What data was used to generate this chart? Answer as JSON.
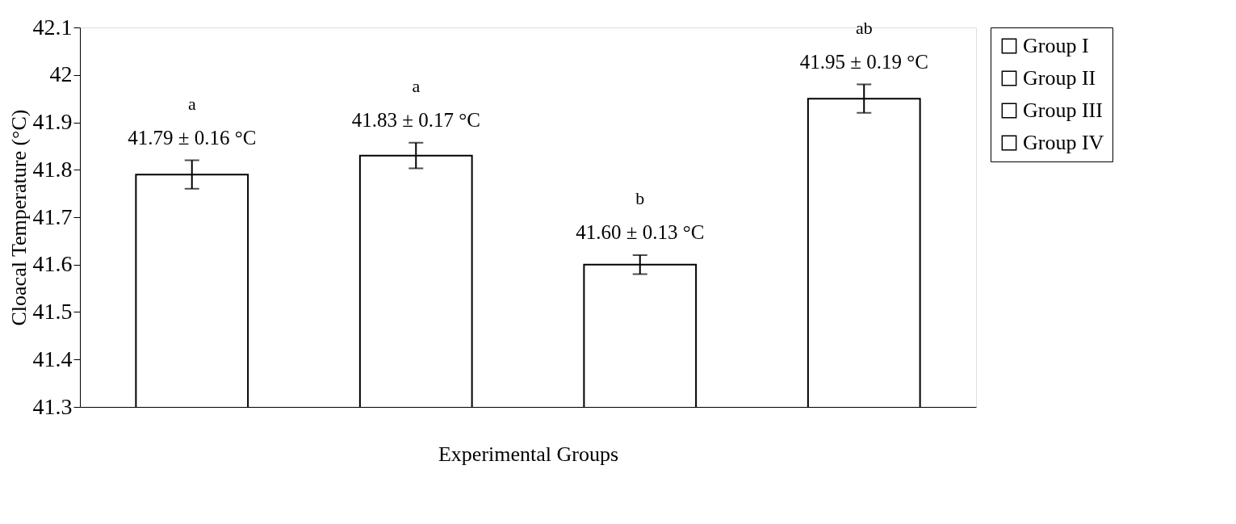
{
  "chart_data": {
    "type": "bar",
    "xlabel": "Experimental Groups",
    "ylabel": "Cloacal Temperature (°C)",
    "categories": [
      null,
      null,
      null,
      null
    ],
    "series": [
      {
        "name": "Group I",
        "color": "#ffffff",
        "values": [
          41.79,
          null,
          null,
          null
        ],
        "errors": [
          0.03,
          null,
          null,
          null
        ],
        "value_labels": [
          "41.79 ± 0.16 °C",
          null,
          null,
          null
        ]
      },
      {
        "name": "Group II",
        "color": "#ffffff",
        "values": [
          null,
          41.83,
          null,
          null
        ],
        "errors": [
          null,
          0.027,
          null,
          null
        ],
        "value_labels": [
          null,
          "41.83 ± 0.17 °C",
          null,
          null
        ]
      },
      {
        "name": "Group III",
        "color": "#ffffff",
        "values": [
          null,
          null,
          41.6,
          null
        ],
        "errors": [
          null,
          null,
          0.02,
          null
        ],
        "value_labels": [
          null,
          null,
          "41.60 ± 0.13 °C",
          null
        ]
      },
      {
        "name": "Group IV",
        "color": "#ffffff",
        "values": [
          null,
          null,
          null,
          41.95
        ],
        "errors": [
          null,
          null,
          null,
          0.03
        ],
        "value_labels": [
          null,
          null,
          null,
          "41.95 ± 0.19 °C"
        ]
      }
    ],
    "annotations": [
      "a",
      "a",
      "b",
      "ab"
    ],
    "ylim": [
      41.3,
      42.1
    ],
    "yticks": [
      41.3,
      41.4,
      41.5,
      41.6,
      41.7,
      41.8,
      41.9,
      42,
      42.1
    ],
    "grid": false,
    "legend": "right",
    "tick_labels": "y"
  }
}
